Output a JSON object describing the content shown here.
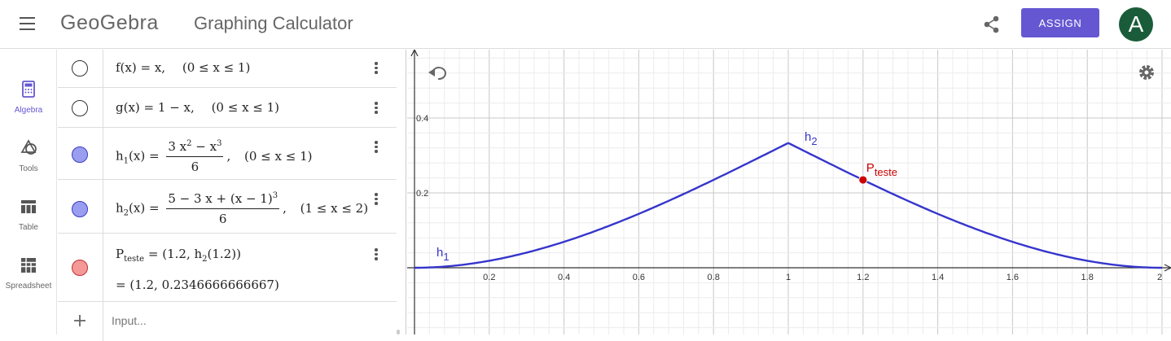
{
  "header": {
    "brand": "GeoGebra",
    "title": "Graphing Calculator",
    "assign_label": "ASSIGN",
    "avatar_letter": "A",
    "accent": "#6557d2",
    "avatar_color": "#1a5c3a"
  },
  "rail": {
    "items": [
      {
        "label": "Algebra",
        "icon": "calculator-icon",
        "active": true
      },
      {
        "label": "Tools",
        "icon": "shapes-icon"
      },
      {
        "label": "Table",
        "icon": "table-icon"
      },
      {
        "label": "Spreadsheet",
        "icon": "spreadsheet-icon"
      }
    ]
  },
  "algebra": {
    "f": {
      "lhs": "f(x)",
      "rhs": "x,",
      "domain": "(0 ≤ x ≤ 1)"
    },
    "g": {
      "lhs": "g(x)",
      "rhs": "1 − x,",
      "domain": "(0 ≤ x ≤ 1)"
    },
    "h1": {
      "name": "h",
      "sub": "1",
      "arg": "(x)",
      "num": "3 x",
      "num_sup": "2",
      "num2": " − x",
      "num2_sup": "3",
      "den": "6",
      "domain": "(0 ≤ x ≤ 1)"
    },
    "h2": {
      "name": "h",
      "sub": "2",
      "arg": "(x)",
      "num": "5 − 3 x + (x − 1)",
      "num_sup": "3",
      "den": "6",
      "domain": "(1 ≤ x ≤ 2)"
    },
    "p": {
      "name": "P",
      "sub": "teste",
      "definition": "(1.2,  h",
      "def_sub": "2",
      "def_end": "(1.2))",
      "value": "=  (1.2, 0.2346666666667)"
    },
    "input_placeholder": "Input..."
  },
  "chart_data": {
    "type": "line",
    "x_ticks": [
      "0.2",
      "0.4",
      "0.6",
      "0.8",
      "1",
      "1.2",
      "1.4",
      "1.6",
      "1.8",
      "2"
    ],
    "y_ticks": [
      "0.2",
      "0.4"
    ],
    "xlim": [
      0,
      2.02
    ],
    "ylim": [
      -0.18,
      0.585
    ],
    "grid": true,
    "series": [
      {
        "name": "h",
        "sub": "1",
        "color": "#3535cc",
        "domain": [
          0,
          1
        ],
        "formula": "(3x^2 - x^3)/6"
      },
      {
        "name": "h",
        "sub": "2",
        "color": "#3535cc",
        "domain": [
          1,
          2
        ],
        "formula": "(5 - 3x + (x-1)^3)/6"
      }
    ],
    "points": [
      {
        "name": "P",
        "sub": "teste",
        "x": 1.2,
        "y": 0.2346666666667,
        "color": "#cc0000"
      }
    ]
  }
}
